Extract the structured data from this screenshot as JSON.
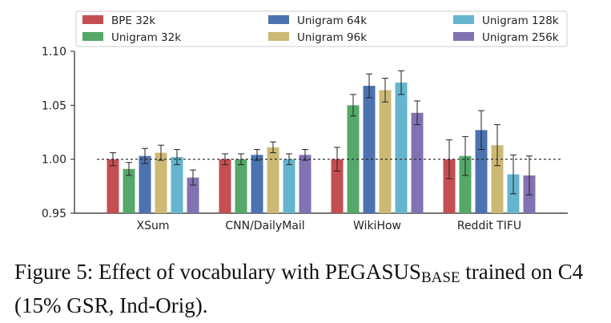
{
  "caption": {
    "lead": "Figure 5: Effect of vocabulary with PEGASUS",
    "subscript": "BASE",
    "rest": " trained on C4 (15% GSR, Ind-Orig)."
  },
  "chart_data": {
    "type": "bar",
    "title": "",
    "xlabel": "",
    "ylabel": "",
    "ylim": [
      0.95,
      1.1
    ],
    "yticks": [
      "0.95",
      "1.00",
      "1.05",
      "1.10"
    ],
    "reference_line": 1.0,
    "legend_placement": "top, 3 columns",
    "categories": [
      "XSum",
      "CNN/DailyMail",
      "WikiHow",
      "Reddit TIFU"
    ],
    "series": [
      {
        "name": "BPE 32k",
        "color": "#c44e52",
        "values": [
          1.0,
          1.0,
          1.0,
          1.0
        ],
        "errors": [
          0.006,
          0.005,
          0.011,
          0.018
        ]
      },
      {
        "name": "Unigram 32k",
        "color": "#55a868",
        "values": [
          0.991,
          1.0,
          1.05,
          1.003
        ],
        "errors": [
          0.006,
          0.005,
          0.01,
          0.018
        ]
      },
      {
        "name": "Unigram 64k",
        "color": "#4c72b0",
        "values": [
          1.003,
          1.004,
          1.068,
          1.027
        ],
        "errors": [
          0.007,
          0.005,
          0.011,
          0.018
        ]
      },
      {
        "name": "Unigram 96k",
        "color": "#ccb974",
        "values": [
          1.006,
          1.011,
          1.064,
          1.013
        ],
        "errors": [
          0.007,
          0.005,
          0.011,
          0.019
        ]
      },
      {
        "name": "Unigram 128k",
        "color": "#64b5cd",
        "values": [
          1.002,
          1.0,
          1.071,
          0.986
        ],
        "errors": [
          0.007,
          0.005,
          0.011,
          0.018
        ]
      },
      {
        "name": "Unigram 256k",
        "color": "#8172b2",
        "values": [
          0.983,
          1.004,
          1.043,
          0.985
        ],
        "errors": [
          0.007,
          0.005,
          0.011,
          0.018
        ]
      }
    ]
  }
}
